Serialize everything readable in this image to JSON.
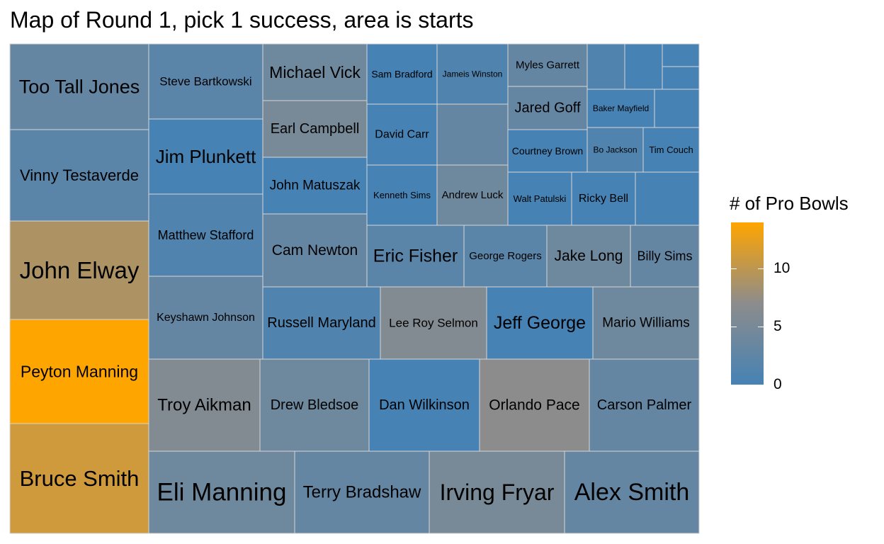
{
  "chart_data": {
    "type": "treemap",
    "title": "Map of Round 1, pick 1 success, area is starts",
    "legend": {
      "title": "# of Pro Bowls",
      "ticks": [
        0,
        5,
        10
      ],
      "range": [
        0,
        14
      ],
      "low_color": "#4682b4",
      "mid_color": "#8c8c8c",
      "high_color": "#ffa500"
    },
    "tiles": [
      {
        "name": "Too Tall Jones",
        "pro_bowls": 3
      },
      {
        "name": "Vinny Testaverde",
        "pro_bowls": 2
      },
      {
        "name": "John Elway",
        "pro_bowls": 9
      },
      {
        "name": "Peyton Manning",
        "pro_bowls": 14
      },
      {
        "name": "Bruce Smith",
        "pro_bowls": 11
      },
      {
        "name": "Steve Bartkowski",
        "pro_bowls": 2
      },
      {
        "name": "Jim Plunkett",
        "pro_bowls": 0
      },
      {
        "name": "Matthew Stafford",
        "pro_bowls": 1
      },
      {
        "name": "Keyshawn Johnson",
        "pro_bowls": 3
      },
      {
        "name": "Michael Vick",
        "pro_bowls": 4
      },
      {
        "name": "Earl Campbell",
        "pro_bowls": 5
      },
      {
        "name": "John Matuszak",
        "pro_bowls": 0
      },
      {
        "name": "Cam Newton",
        "pro_bowls": 3
      },
      {
        "name": "Sam Bradford",
        "pro_bowls": 0
      },
      {
        "name": "Jameis Winston",
        "pro_bowls": 1
      },
      {
        "name": "David Carr",
        "pro_bowls": 0
      },
      {
        "name": "",
        "pro_bowls": 3
      },
      {
        "name": "Kenneth Sims",
        "pro_bowls": 0
      },
      {
        "name": "Andrew Luck",
        "pro_bowls": 4
      },
      {
        "name": "Myles Garrett",
        "pro_bowls": 3
      },
      {
        "name": "Jared Goff",
        "pro_bowls": 3
      },
      {
        "name": "Courtney Brown",
        "pro_bowls": 0
      },
      {
        "name": "Walt Patulski",
        "pro_bowls": 0
      },
      {
        "name": "Ricky Bell",
        "pro_bowls": 0
      },
      {
        "name": "Baker Mayfield",
        "pro_bowls": 0
      },
      {
        "name": "Bo Jackson",
        "pro_bowls": 1
      },
      {
        "name": "Tim Couch",
        "pro_bowls": 0
      },
      {
        "name": "",
        "pro_bowls": 0
      },
      {
        "name": "",
        "pro_bowls": 1
      },
      {
        "name": "",
        "pro_bowls": 0
      },
      {
        "name": "",
        "pro_bowls": 0
      },
      {
        "name": "",
        "pro_bowls": 0
      },
      {
        "name": "",
        "pro_bowls": 0
      },
      {
        "name": "Eric Fisher",
        "pro_bowls": 2
      },
      {
        "name": "George Rogers",
        "pro_bowls": 2
      },
      {
        "name": "Jake Long",
        "pro_bowls": 4
      },
      {
        "name": "Billy Sims",
        "pro_bowls": 3
      },
      {
        "name": "Russell Maryland",
        "pro_bowls": 1
      },
      {
        "name": "Lee Roy Selmon",
        "pro_bowls": 6
      },
      {
        "name": "Jeff George",
        "pro_bowls": 0
      },
      {
        "name": "Mario Williams",
        "pro_bowls": 4
      },
      {
        "name": "Troy Aikman",
        "pro_bowls": 6
      },
      {
        "name": "Drew Bledsoe",
        "pro_bowls": 4
      },
      {
        "name": "Dan Wilkinson",
        "pro_bowls": 0
      },
      {
        "name": "Orlando Pace",
        "pro_bowls": 7
      },
      {
        "name": "Carson Palmer",
        "pro_bowls": 3
      },
      {
        "name": "Eli Manning",
        "pro_bowls": 4
      },
      {
        "name": "Terry Bradshaw",
        "pro_bowls": 3
      },
      {
        "name": "Irving Fryar",
        "pro_bowls": 5
      },
      {
        "name": "Alex Smith",
        "pro_bowls": 3
      }
    ]
  }
}
